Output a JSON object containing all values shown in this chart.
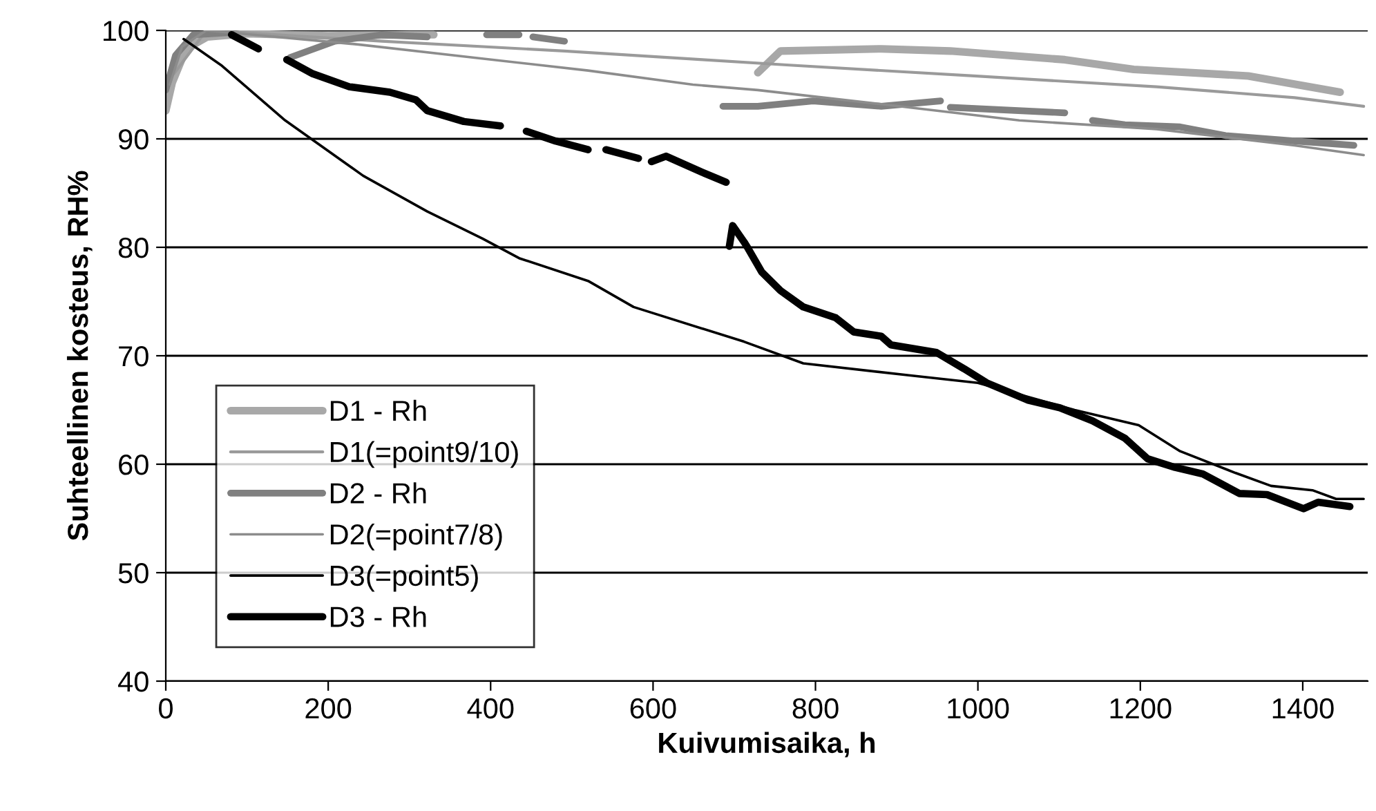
{
  "chart_data": {
    "type": "line",
    "xlabel": "Kuivumisaika, h",
    "ylabel": "Suhteellinen kosteus, RH%",
    "xlim": [
      0,
      1480
    ],
    "ylim": [
      40,
      100
    ],
    "xticks": [
      0,
      200,
      400,
      600,
      800,
      1000,
      1200,
      1400
    ],
    "yticks": [
      40,
      50,
      60,
      70,
      80,
      90,
      100
    ],
    "grid": "y",
    "legend": "bottom left",
    "marker": "none",
    "line_style": "solid",
    "series": [
      {
        "name": "D1 - Rh",
        "color": "#a8a8a8",
        "x": [
          0,
          8,
          25,
          51,
          100,
          200,
          300,
          330,
          500,
          729,
          757,
          881,
          966,
          1107,
          1192,
          1333,
          1446
        ],
        "values": [
          92.6,
          95.2,
          98.3,
          99.4,
          99.7,
          99.5,
          99.6,
          99.6,
          null,
          96.1,
          98.1,
          98.3,
          98.1,
          97.3,
          96.4,
          95.8,
          94.3
        ]
      },
      {
        "name": "D1(=point9/10)",
        "color": "#9a9a9a",
        "x": [
          10,
          50,
          266,
          491,
          661,
          768,
          995,
          1220,
          1390,
          1475
        ],
        "values": [
          96,
          100,
          99,
          98.1,
          97.3,
          96.8,
          95.8,
          94.8,
          93.8,
          93
        ]
      },
      {
        "name": "D2 - Rh",
        "color": "#808080",
        "x": [
          0,
          12,
          34,
          80,
          120,
          153,
          208,
          266,
          322,
          350,
          395,
          435,
          440,
          452,
          491,
          600,
          686,
          729,
          797,
          881,
          954,
          960,
          966,
          1107,
          1120,
          1141,
          1181,
          1249,
          1305,
          1390,
          1463
        ],
        "values": [
          94.5,
          97.7,
          99.6,
          99.8,
          null,
          97.5,
          99,
          99.6,
          99.4,
          null,
          99.6,
          99.6,
          null,
          99.4,
          99,
          null,
          93,
          93,
          93.5,
          93,
          93.5,
          null,
          92.9,
          92.4,
          null,
          91.7,
          91.3,
          91.1,
          90.3,
          89.8,
          89.4
        ]
      },
      {
        "name": "D2(=point7/8)",
        "color": "#8c8c8c",
        "x": [
          5,
          20,
          50,
          237,
          378,
          520,
          649,
          729,
          881,
          1051,
          1220,
          1390,
          1475
        ],
        "values": [
          95,
          98.5,
          100,
          98.7,
          97.5,
          96.3,
          95,
          94.5,
          93.2,
          91.7,
          90.9,
          89.4,
          88.5
        ]
      },
      {
        "name": "D3(=point5)",
        "color": "#000000",
        "x": [
          22,
          68,
          147,
          243,
          322,
          390,
          435,
          520,
          576,
          712,
          785,
          915,
          1000,
          1119,
          1198,
          1249,
          1317,
          1361,
          1412,
          1441,
          1475
        ],
        "values": [
          99.2,
          96.8,
          91.7,
          86.6,
          83.3,
          80.8,
          79,
          76.9,
          74.5,
          71.3,
          69.3,
          68.2,
          67.5,
          65,
          63.6,
          61.2,
          59.2,
          58,
          57.6,
          56.8,
          56.8
        ]
      },
      {
        "name": "D3 - Rh",
        "color": "#000000",
        "x": [
          81,
          114,
          130,
          149,
          181,
          226,
          276,
          308,
          322,
          367,
          412,
          430,
          444,
          480,
          520,
          530,
          542,
          582,
          590,
          598,
          616,
          661,
          690,
          692,
          694,
          698,
          712,
          717,
          734,
          757,
          785,
          825,
          847,
          881,
          893,
          949,
          983,
          1011,
          1062,
          1101,
          1141,
          1181,
          1209,
          1243,
          1277,
          1322,
          1356,
          1401,
          1419,
          1458
        ],
        "values": [
          99.6,
          98.3,
          null,
          97.3,
          96,
          94.8,
          94.3,
          93.6,
          92.6,
          91.6,
          91.2,
          null,
          90.7,
          89.8,
          89,
          null,
          89,
          88.2,
          null,
          87.9,
          88.4,
          86.9,
          86,
          null,
          80.1,
          82,
          80.5,
          79.9,
          77.7,
          76,
          74.5,
          73.5,
          72.2,
          71.8,
          71,
          70.3,
          68.8,
          67.5,
          65.9,
          65.2,
          64,
          62.4,
          60.5,
          59.7,
          59.1,
          57.3,
          57.2,
          55.9,
          56.5,
          56.1
        ]
      }
    ]
  }
}
